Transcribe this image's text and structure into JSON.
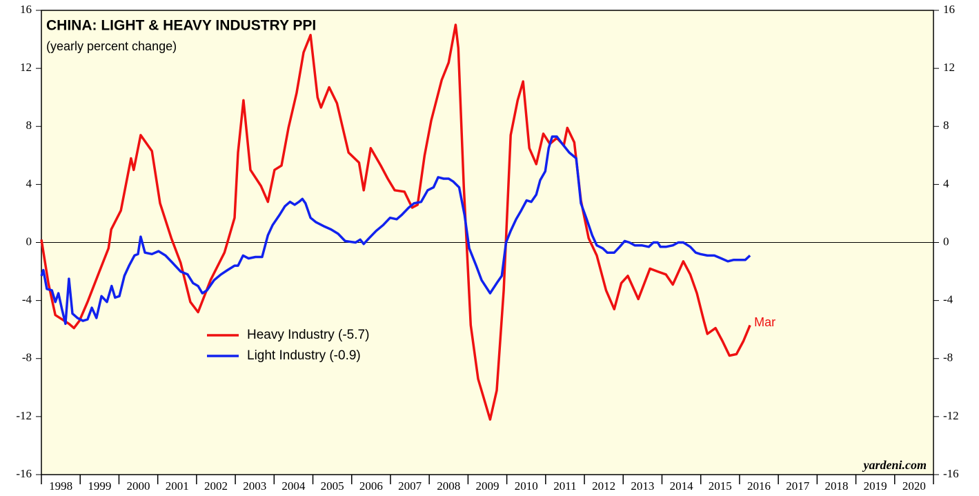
{
  "chart_data": {
    "type": "line",
    "title": "CHINA: LIGHT & HEAVY INDUSTRY PPI",
    "subtitle": "(yearly percent change)",
    "annotation": "Mar",
    "source": "yardeni.com",
    "xlim": [
      1998,
      2021
    ],
    "xticks": [
      1998,
      1999,
      2000,
      2001,
      2002,
      2003,
      2004,
      2005,
      2006,
      2007,
      2008,
      2009,
      2010,
      2011,
      2012,
      2013,
      2014,
      2015,
      2016,
      2017,
      2018,
      2019,
      2020,
      2021
    ],
    "x_labels": [
      1998,
      1999,
      2000,
      2001,
      2002,
      2003,
      2004,
      2005,
      2006,
      2007,
      2008,
      2009,
      2010,
      2011,
      2012,
      2013,
      2014,
      2015,
      2016,
      2017,
      2018,
      2019,
      2020
    ],
    "ylim": [
      -16,
      16
    ],
    "yticks": [
      -16,
      -12,
      -8,
      -4,
      0,
      4,
      8,
      12,
      16
    ],
    "legend": "center-left",
    "series": [
      {
        "name": "Heavy Industry (-5.7)",
        "color": "#ee1111",
        "x": [
          1998.0,
          1998.18,
          1998.36,
          1998.71,
          1998.84,
          1998.98,
          1999.19,
          1999.48,
          1999.73,
          1999.8,
          2000.05,
          2000.31,
          2000.38,
          2000.56,
          2000.85,
          2001.06,
          2001.35,
          2001.59,
          2001.84,
          2002.04,
          2002.36,
          2002.72,
          2002.98,
          2003.07,
          2003.21,
          2003.39,
          2003.66,
          2003.84,
          2004.01,
          2004.19,
          2004.37,
          2004.58,
          2004.76,
          2004.94,
          2005.12,
          2005.21,
          2005.42,
          2005.62,
          2005.92,
          2006.19,
          2006.31,
          2006.49,
          2006.75,
          2006.93,
          2007.11,
          2007.36,
          2007.56,
          2007.7,
          2007.88,
          2008.05,
          2008.32,
          2008.5,
          2008.68,
          2008.75,
          2008.89,
          2009.07,
          2009.26,
          2009.48,
          2009.57,
          2009.74,
          2009.92,
          2010.1,
          2010.28,
          2010.42,
          2010.58,
          2010.76,
          2010.94,
          2011.11,
          2011.29,
          2011.47,
          2011.56,
          2011.74,
          2011.91,
          2012.11,
          2012.32,
          2012.56,
          2012.77,
          2012.95,
          2013.12,
          2013.39,
          2013.69,
          2013.89,
          2014.1,
          2014.28,
          2014.55,
          2014.73,
          2014.9,
          2015.08,
          2015.17,
          2015.38,
          2015.56,
          2015.74,
          2015.92,
          2016.1,
          2016.27
        ],
        "values": [
          0.2,
          -2.8,
          -5.0,
          -5.6,
          -5.9,
          -5.4,
          -4.1,
          -2.1,
          -0.4,
          0.9,
          2.2,
          5.8,
          5.0,
          7.4,
          6.3,
          2.7,
          0.3,
          -1.4,
          -4.1,
          -4.8,
          -2.6,
          -0.7,
          1.7,
          6.2,
          9.8,
          5.0,
          3.9,
          2.8,
          5.0,
          5.3,
          7.9,
          10.3,
          13.1,
          14.3,
          10.0,
          9.3,
          10.7,
          9.6,
          6.2,
          5.5,
          3.6,
          6.5,
          5.3,
          4.4,
          3.6,
          3.5,
          2.4,
          2.6,
          6.0,
          8.4,
          11.2,
          12.4,
          15.0,
          13.4,
          3.9,
          -5.7,
          -9.4,
          -11.4,
          -12.2,
          -10.2,
          -3.3,
          7.4,
          9.8,
          11.1,
          6.5,
          5.4,
          7.5,
          6.8,
          7.2,
          6.7,
          7.9,
          6.9,
          2.9,
          0.3,
          -0.9,
          -3.3,
          -4.6,
          -2.8,
          -2.3,
          -3.9,
          -1.8,
          -2.0,
          -2.2,
          -2.9,
          -1.3,
          -2.2,
          -3.5,
          -5.4,
          -6.3,
          -5.9,
          -6.8,
          -7.8,
          -7.7,
          -6.8,
          -5.7
        ]
      },
      {
        "name": "Light Industry (-0.9)",
        "color": "#1122ee",
        "x": [
          1998.0,
          1998.05,
          1998.14,
          1998.27,
          1998.36,
          1998.44,
          1998.53,
          1998.62,
          1998.71,
          1998.8,
          1998.93,
          1999.07,
          1999.19,
          1999.3,
          1999.42,
          1999.55,
          1999.69,
          1999.81,
          1999.9,
          2000.01,
          2000.14,
          2000.26,
          2000.4,
          2000.49,
          2000.56,
          2000.67,
          2000.85,
          2001.02,
          2001.2,
          2001.38,
          2001.59,
          2001.77,
          2001.91,
          2002.04,
          2002.15,
          2002.27,
          2002.45,
          2002.63,
          2002.8,
          2002.98,
          2003.07,
          2003.2,
          2003.34,
          2003.52,
          2003.69,
          2003.84,
          2003.96,
          2004.14,
          2004.28,
          2004.41,
          2004.53,
          2004.64,
          2004.73,
          2004.81,
          2004.94,
          2005.08,
          2005.3,
          2005.47,
          2005.65,
          2005.83,
          2006.1,
          2006.22,
          2006.31,
          2006.45,
          2006.63,
          2006.81,
          2006.99,
          2007.16,
          2007.29,
          2007.47,
          2007.61,
          2007.79,
          2007.96,
          2008.11,
          2008.23,
          2008.37,
          2008.5,
          2008.62,
          2008.77,
          2008.91,
          2009.03,
          2009.21,
          2009.35,
          2009.57,
          2009.74,
          2009.87,
          2009.98,
          2010.1,
          2010.24,
          2010.37,
          2010.51,
          2010.63,
          2010.76,
          2010.86,
          2010.99,
          2011.08,
          2011.17,
          2011.29,
          2011.43,
          2011.61,
          2011.79,
          2011.91,
          2012.06,
          2012.2,
          2012.32,
          2012.47,
          2012.59,
          2012.77,
          2012.91,
          2013.04,
          2013.16,
          2013.3,
          2013.48,
          2013.66,
          2013.78,
          2013.89,
          2013.96,
          2014.1,
          2014.28,
          2014.42,
          2014.55,
          2014.73,
          2014.87,
          2014.99,
          2015.17,
          2015.35,
          2015.53,
          2015.7,
          2015.85,
          2016.01,
          2016.15,
          2016.27
        ],
        "values": [
          -2.3,
          -1.9,
          -3.2,
          -3.3,
          -4.1,
          -3.5,
          -4.6,
          -5.6,
          -2.5,
          -4.9,
          -5.2,
          -5.4,
          -5.3,
          -4.5,
          -5.2,
          -3.7,
          -4.1,
          -3.0,
          -3.8,
          -3.7,
          -2.3,
          -1.6,
          -0.9,
          -0.8,
          0.4,
          -0.7,
          -0.8,
          -0.6,
          -0.9,
          -1.4,
          -2.0,
          -2.2,
          -2.8,
          -3.0,
          -3.5,
          -3.3,
          -2.6,
          -2.2,
          -1.9,
          -1.6,
          -1.6,
          -0.9,
          -1.1,
          -1.0,
          -1.0,
          0.5,
          1.2,
          1.9,
          2.5,
          2.8,
          2.6,
          2.8,
          3.0,
          2.7,
          1.7,
          1.4,
          1.1,
          0.9,
          0.6,
          0.1,
          0.0,
          0.2,
          -0.1,
          0.3,
          0.8,
          1.2,
          1.7,
          1.6,
          1.9,
          2.4,
          2.7,
          2.8,
          3.6,
          3.8,
          4.5,
          4.4,
          4.4,
          4.2,
          3.8,
          1.9,
          -0.4,
          -1.6,
          -2.6,
          -3.5,
          -2.8,
          -2.3,
          0.0,
          0.8,
          1.6,
          2.2,
          2.9,
          2.8,
          3.3,
          4.3,
          4.9,
          6.5,
          7.3,
          7.3,
          6.8,
          6.2,
          5.8,
          2.7,
          1.6,
          0.5,
          -0.2,
          -0.4,
          -0.7,
          -0.7,
          -0.3,
          0.1,
          0.0,
          -0.2,
          -0.2,
          -0.3,
          0.0,
          0.0,
          -0.3,
          -0.3,
          -0.2,
          0.0,
          0.0,
          -0.3,
          -0.7,
          -0.8,
          -0.9,
          -0.9,
          -1.1,
          -1.3,
          -1.2,
          -1.2,
          -1.2,
          -0.9
        ]
      }
    ]
  }
}
